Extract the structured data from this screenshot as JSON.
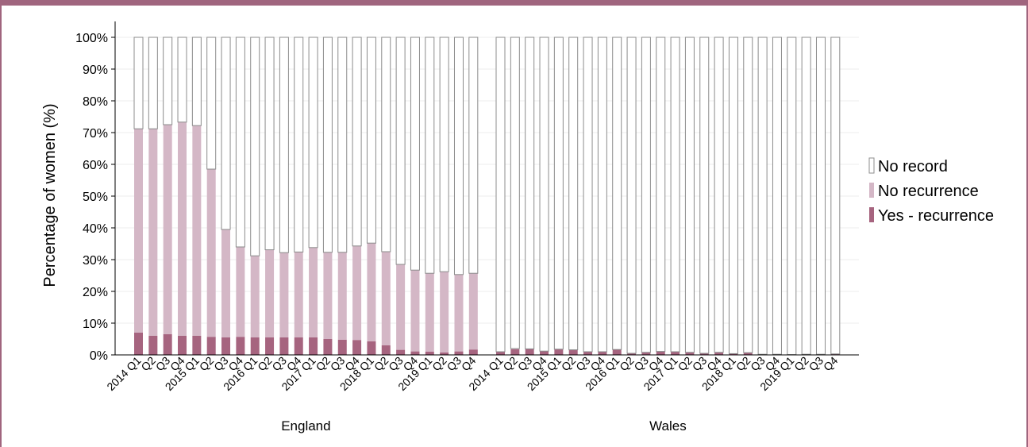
{
  "chart_data": {
    "type": "bar",
    "stacked": true,
    "ylabel": "Percentage of women (%)",
    "ylim": [
      0,
      100
    ],
    "yticks": [
      "0%",
      "10%",
      "20%",
      "30%",
      "40%",
      "50%",
      "60%",
      "70%",
      "80%",
      "90%",
      "100%"
    ],
    "grid": true,
    "legend_position": "right",
    "legend": [
      {
        "label": "No record",
        "color": "#ffffff"
      },
      {
        "label": "No recurrence",
        "color": "#d4b7c6"
      },
      {
        "label": "Yes - recurrence",
        "color": "#a6647f"
      }
    ],
    "categories": [
      "2014 Q1",
      "Q2",
      "Q3",
      "Q4",
      "2015 Q1",
      "Q2",
      "Q3",
      "Q4",
      "2016 Q1",
      "Q2",
      "Q3",
      "Q4",
      "2017 Q1",
      "Q2",
      "Q3",
      "Q4",
      "2018 Q1",
      "Q2",
      "Q3",
      "Q4",
      "2019 Q1",
      "Q2",
      "Q3",
      "Q4"
    ],
    "groups": [
      {
        "name": "England",
        "series": [
          {
            "name": "Yes - recurrence",
            "values": [
              7,
              6,
              6.5,
              6,
              6,
              5.7,
              5.5,
              5.7,
              5.5,
              5.5,
              5.5,
              5.5,
              5.5,
              5,
              4.8,
              4.7,
              4.3,
              3,
              1.6,
              1.1,
              1,
              0.8,
              1.1,
              1.7
            ]
          },
          {
            "name": "No recurrence",
            "values": [
              64.2,
              65.2,
              66,
              67.3,
              66.2,
              52.8,
              34,
              28.3,
              25.7,
              27.6,
              26.7,
              26.9,
              28.3,
              27.3,
              27.5,
              29.6,
              30.9,
              29.5,
              26.9,
              25.6,
              24.7,
              25.4,
              24.2,
              24
            ]
          },
          {
            "name": "No record",
            "values": [
              28.8,
              28.8,
              27.5,
              26.7,
              27.8,
              41.5,
              60.5,
              66,
              68.8,
              66.9,
              67.8,
              67.6,
              66.2,
              67.7,
              67.7,
              65.7,
              64.8,
              67.5,
              71.5,
              73.3,
              74.3,
              73.8,
              74.7,
              74.3
            ]
          }
        ]
      },
      {
        "name": "Wales",
        "series": [
          {
            "name": "Yes - recurrence",
            "values": [
              1,
              1.8,
              1.9,
              1.2,
              1.8,
              1.6,
              1,
              1,
              1.7,
              0.5,
              0.8,
              1.1,
              1,
              0.8,
              0.5,
              0.8,
              0.4,
              0.7,
              0.2,
              0.2,
              0.1,
              0.2,
              0.2,
              0.3
            ]
          },
          {
            "name": "No recurrence",
            "values": [
              0,
              0.2,
              0,
              0,
              0,
              0,
              0,
              0,
              0,
              0,
              0,
              0,
              0,
              0,
              0,
              0,
              0,
              0,
              0,
              0,
              0,
              0,
              0,
              0
            ]
          },
          {
            "name": "No record",
            "values": [
              99,
              98,
              98.1,
              98.8,
              98.2,
              98.4,
              99,
              99,
              98.3,
              99.5,
              99.2,
              98.9,
              99,
              99.2,
              99.5,
              99.2,
              99.6,
              99.3,
              99.8,
              99.8,
              99.9,
              99.8,
              99.8,
              99.7
            ]
          }
        ]
      }
    ]
  }
}
